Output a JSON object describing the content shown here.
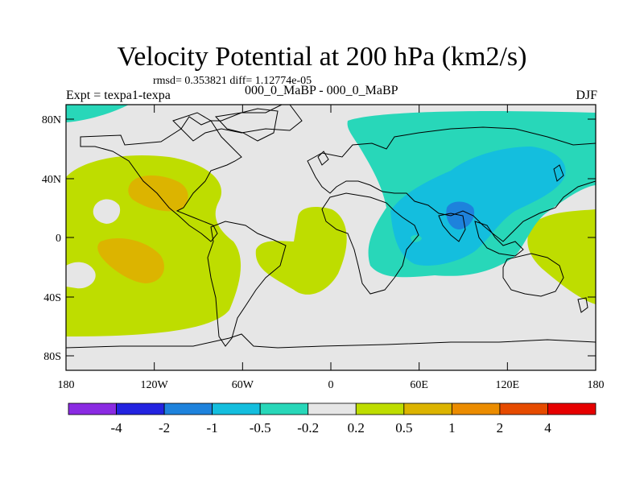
{
  "title": "Velocity Potential at 200 hPa (km2/s)",
  "stats_line": "rmsd= 0.353821 diff= 1.12774e-05",
  "left_label": "Expt = texpa1-texpa",
  "center_label": "000_0_MaBP - 000_0_MaBP",
  "right_label": "DJF",
  "lat_ticks": [
    "80N",
    "40N",
    "0",
    "40S",
    "80S"
  ],
  "lon_ticks": [
    "180",
    "120W",
    "60W",
    "0",
    "60E",
    "120E",
    "180"
  ],
  "colorbar": {
    "colors": [
      "#8a2be2",
      "#2323e0",
      "#1e82dc",
      "#14bede",
      "#28d7b9",
      "#e6e6e6",
      "#bedd00",
      "#dcb400",
      "#eb8c00",
      "#e64b00",
      "#e60000"
    ],
    "labels": [
      "-4",
      "-2",
      "-1",
      "-0.5",
      "-0.2",
      "0.2",
      "0.5",
      "1",
      "2",
      "4"
    ]
  },
  "regions": {
    "background": "#e6e6e6",
    "positive_05": "#bedd00",
    "positive_1": "#dcb400",
    "negative_02": "#28d7b9",
    "negative_05": "#14bede",
    "negative_1": "#1e82dc"
  }
}
